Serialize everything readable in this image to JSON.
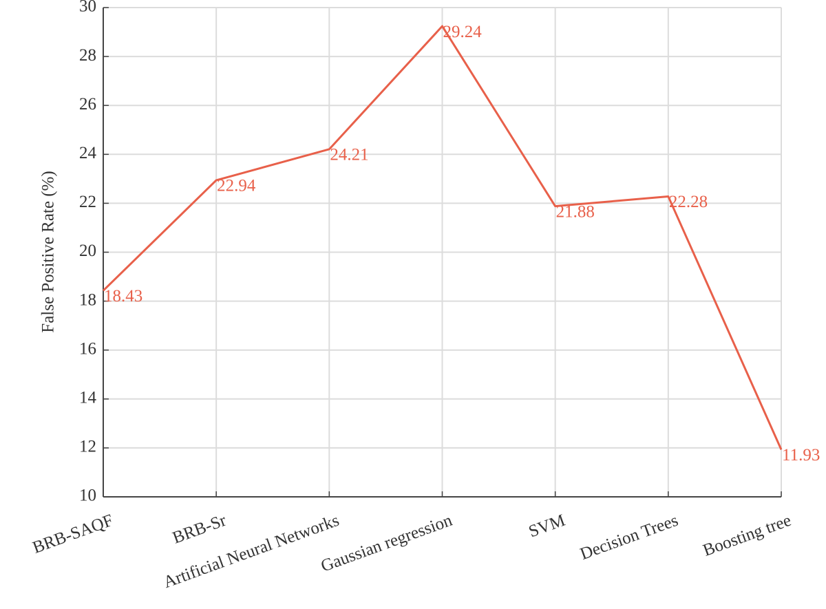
{
  "chart_data": {
    "type": "line",
    "y_label": "False Positive Rate (%)",
    "categories": [
      "BRB-SAQF",
      "BRB-Sr",
      "Artificial Neural Networks",
      "Gaussian regression",
      "SVM",
      "Decision Trees",
      "Boosting tree"
    ],
    "values": [
      18.43,
      22.94,
      24.21,
      29.24,
      21.88,
      22.28,
      11.93
    ],
    "color": "#e8604a",
    "ylim": [
      10,
      30
    ],
    "yticks": [
      10,
      12,
      14,
      16,
      18,
      20,
      22,
      24,
      26,
      28,
      30
    ],
    "grid": true
  }
}
